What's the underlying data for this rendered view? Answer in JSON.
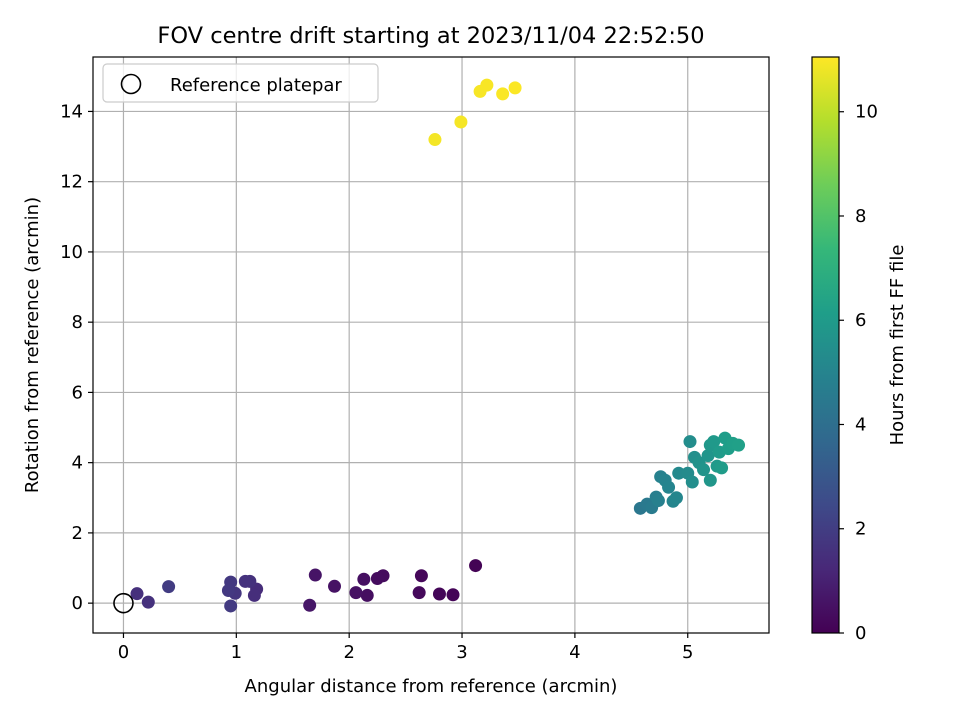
{
  "chart_data": {
    "type": "scatter",
    "title": "FOV centre drift starting at 2023/11/04 22:52:50",
    "xlabel": "Angular distance from reference (arcmin)",
    "ylabel": "Rotation from reference (arcmin)",
    "xlim": [
      -0.27,
      5.72
    ],
    "ylim": [
      -0.85,
      15.55
    ],
    "xticks": [
      0,
      1,
      2,
      3,
      4,
      5
    ],
    "yticks": [
      0,
      2,
      4,
      6,
      8,
      10,
      12,
      14
    ],
    "grid": true,
    "legend": {
      "placement": "top-left",
      "entries": [
        "Reference platepar"
      ]
    },
    "reference_point": {
      "label": "Reference platepar",
      "x": 0,
      "y": 0
    },
    "colorbar": {
      "label": "Hours from first FF file",
      "range": [
        0,
        11.05
      ],
      "ticks": [
        0,
        2,
        4,
        6,
        8,
        10
      ],
      "colormap": "viridis"
    },
    "points": [
      {
        "x": 3.12,
        "y": 1.07,
        "t": 0.05
      },
      {
        "x": 2.92,
        "y": 0.24,
        "t": 0.1
      },
      {
        "x": 2.8,
        "y": 0.26,
        "t": 0.15
      },
      {
        "x": 2.64,
        "y": 0.78,
        "t": 0.2
      },
      {
        "x": 2.62,
        "y": 0.3,
        "t": 0.25
      },
      {
        "x": 2.3,
        "y": 0.78,
        "t": 0.3
      },
      {
        "x": 2.25,
        "y": 0.7,
        "t": 0.35
      },
      {
        "x": 2.16,
        "y": 0.22,
        "t": 0.4
      },
      {
        "x": 2.13,
        "y": 0.68,
        "t": 0.45
      },
      {
        "x": 2.06,
        "y": 0.3,
        "t": 0.5
      },
      {
        "x": 1.87,
        "y": 0.48,
        "t": 0.55
      },
      {
        "x": 1.7,
        "y": 0.8,
        "t": 0.6
      },
      {
        "x": 1.65,
        "y": -0.06,
        "t": 0.65
      },
      {
        "x": 1.18,
        "y": 0.4,
        "t": 1.4
      },
      {
        "x": 1.16,
        "y": 0.22,
        "t": 1.45
      },
      {
        "x": 1.12,
        "y": 0.62,
        "t": 1.55
      },
      {
        "x": 1.08,
        "y": 0.62,
        "t": 1.6
      },
      {
        "x": 0.99,
        "y": 0.28,
        "t": 1.75
      },
      {
        "x": 0.95,
        "y": 0.6,
        "t": 1.8
      },
      {
        "x": 0.93,
        "y": 0.36,
        "t": 1.85
      },
      {
        "x": 0.95,
        "y": -0.08,
        "t": 1.9
      },
      {
        "x": 0.4,
        "y": 0.47,
        "t": 1.95
      },
      {
        "x": 0.22,
        "y": 0.03,
        "t": 1.55
      },
      {
        "x": 0.12,
        "y": 0.27,
        "t": 1.5
      },
      {
        "x": 4.58,
        "y": 2.7,
        "t": 4.4
      },
      {
        "x": 4.64,
        "y": 2.82,
        "t": 4.5
      },
      {
        "x": 4.68,
        "y": 2.72,
        "t": 4.6
      },
      {
        "x": 4.72,
        "y": 3.02,
        "t": 4.7
      },
      {
        "x": 4.74,
        "y": 2.92,
        "t": 4.8
      },
      {
        "x": 4.76,
        "y": 3.6,
        "t": 4.85
      },
      {
        "x": 4.8,
        "y": 3.5,
        "t": 4.95
      },
      {
        "x": 4.83,
        "y": 3.3,
        "t": 5.0
      },
      {
        "x": 4.87,
        "y": 2.9,
        "t": 5.05
      },
      {
        "x": 4.9,
        "y": 3.0,
        "t": 5.1
      },
      {
        "x": 4.92,
        "y": 3.7,
        "t": 5.2
      },
      {
        "x": 5.0,
        "y": 3.7,
        "t": 5.3
      },
      {
        "x": 5.02,
        "y": 4.6,
        "t": 5.4
      },
      {
        "x": 5.04,
        "y": 3.45,
        "t": 5.45
      },
      {
        "x": 5.06,
        "y": 4.15,
        "t": 5.5
      },
      {
        "x": 5.1,
        "y": 4.0,
        "t": 5.6
      },
      {
        "x": 5.14,
        "y": 3.8,
        "t": 5.7
      },
      {
        "x": 5.18,
        "y": 4.2,
        "t": 5.75
      },
      {
        "x": 5.2,
        "y": 3.5,
        "t": 5.8
      },
      {
        "x": 5.2,
        "y": 4.5,
        "t": 5.85
      },
      {
        "x": 5.23,
        "y": 4.6,
        "t": 5.9
      },
      {
        "x": 5.26,
        "y": 3.9,
        "t": 5.95
      },
      {
        "x": 5.28,
        "y": 4.3,
        "t": 6.0
      },
      {
        "x": 5.3,
        "y": 3.85,
        "t": 6.05
      },
      {
        "x": 5.33,
        "y": 4.7,
        "t": 6.1
      },
      {
        "x": 5.36,
        "y": 4.4,
        "t": 6.15
      },
      {
        "x": 5.4,
        "y": 4.55,
        "t": 6.2
      },
      {
        "x": 5.45,
        "y": 4.5,
        "t": 6.25
      },
      {
        "x": 2.76,
        "y": 13.2,
        "t": 10.9
      },
      {
        "x": 2.99,
        "y": 13.7,
        "t": 10.92
      },
      {
        "x": 3.16,
        "y": 14.57,
        "t": 10.95
      },
      {
        "x": 3.22,
        "y": 14.75,
        "t": 10.97
      },
      {
        "x": 3.36,
        "y": 14.5,
        "t": 11.0
      },
      {
        "x": 3.47,
        "y": 14.67,
        "t": 11.02
      }
    ]
  }
}
